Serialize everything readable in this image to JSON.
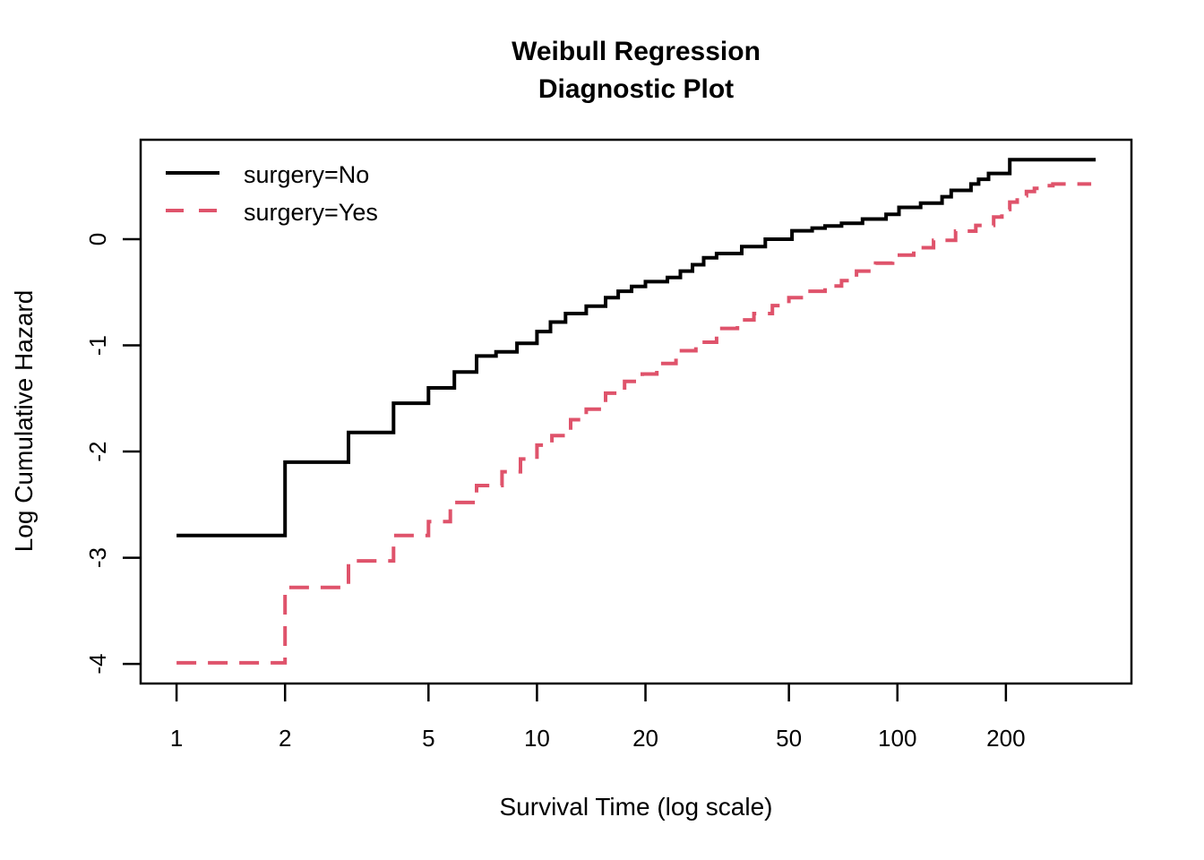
{
  "figure": {
    "background": "#FFFFFF",
    "foreground": "#000000"
  },
  "chart_data": {
    "type": "line",
    "subtype": "step-function-cumulative-hazard",
    "title": "Weibull Regression Diagnostic Plot",
    "title_line1": "Weibull Regression",
    "title_line2": "Diagnostic Plot",
    "xlabel": "Survival Time (log scale)",
    "ylabel": "Log Cumulative Hazard",
    "x_scale": "log",
    "y_scale": "linear",
    "grid": false,
    "legend_position": "top-left",
    "x_domain": [
      0.795,
      446
    ],
    "y_domain": [
      -4.185,
      0.937
    ],
    "x_tick_values": [
      1,
      2,
      5,
      10,
      20,
      50,
      100,
      200
    ],
    "x_tick_labels": [
      "1",
      "2",
      "5",
      "10",
      "20",
      "50",
      "100",
      "200"
    ],
    "y_tick_values": [
      0,
      -1,
      -2,
      -3,
      -4
    ],
    "y_tick_labels": [
      "0",
      "-1",
      "-2",
      "-3",
      "-4"
    ],
    "series": [
      {
        "name": "surgery=No",
        "color": "#000000",
        "line_style": "solid",
        "dash_array": "none",
        "line_width": 4,
        "step": "after",
        "x_end": 355,
        "points": [
          [
            1,
            -2.79
          ],
          [
            2,
            -2.1
          ],
          [
            3,
            -1.82
          ],
          [
            4,
            -1.545
          ],
          [
            5,
            -1.4
          ],
          [
            5.9,
            -1.25
          ],
          [
            6.8,
            -1.1
          ],
          [
            7.7,
            -1.06
          ],
          [
            8.8,
            -0.98
          ],
          [
            10,
            -0.87
          ],
          [
            10.9,
            -0.78
          ],
          [
            12,
            -0.7
          ],
          [
            13.7,
            -0.63
          ],
          [
            15.5,
            -0.55
          ],
          [
            16.8,
            -0.49
          ],
          [
            18.3,
            -0.445
          ],
          [
            20,
            -0.4
          ],
          [
            23,
            -0.36
          ],
          [
            25,
            -0.3
          ],
          [
            27,
            -0.24
          ],
          [
            29,
            -0.175
          ],
          [
            31.5,
            -0.135
          ],
          [
            37,
            -0.07
          ],
          [
            43,
            0.0
          ],
          [
            51,
            0.08
          ],
          [
            58,
            0.105
          ],
          [
            63,
            0.125
          ],
          [
            70,
            0.15
          ],
          [
            80,
            0.19
          ],
          [
            93,
            0.235
          ],
          [
            101,
            0.3
          ],
          [
            116,
            0.34
          ],
          [
            133,
            0.4
          ],
          [
            141,
            0.46
          ],
          [
            160,
            0.52
          ],
          [
            168,
            0.565
          ],
          [
            179,
            0.62
          ],
          [
            205,
            0.75
          ]
        ]
      },
      {
        "name": "surgery=Yes",
        "color": "#DF536B",
        "line_style": "dashed",
        "dash_array": "22 13",
        "line_width": 4,
        "step": "after",
        "x_end": 345,
        "points": [
          [
            1,
            -3.99
          ],
          [
            2,
            -3.28
          ],
          [
            3,
            -3.03
          ],
          [
            4,
            -2.79
          ],
          [
            5,
            -2.66
          ],
          [
            5.75,
            -2.48
          ],
          [
            6.8,
            -2.32
          ],
          [
            8,
            -2.19
          ],
          [
            9,
            -2.07
          ],
          [
            10,
            -1.94
          ],
          [
            11,
            -1.85
          ],
          [
            12.4,
            -1.7
          ],
          [
            13.7,
            -1.6
          ],
          [
            15.5,
            -1.45
          ],
          [
            17.5,
            -1.34
          ],
          [
            19.6,
            -1.27
          ],
          [
            21.5,
            -1.17
          ],
          [
            24.3,
            -1.05
          ],
          [
            27.6,
            -0.97
          ],
          [
            31.5,
            -0.84
          ],
          [
            36,
            -0.76
          ],
          [
            40,
            -0.7
          ],
          [
            45,
            -0.625
          ],
          [
            50,
            -0.55
          ],
          [
            56,
            -0.49
          ],
          [
            63,
            -0.44
          ],
          [
            70,
            -0.39
          ],
          [
            77,
            -0.3
          ],
          [
            87,
            -0.225
          ],
          [
            97,
            -0.15
          ],
          [
            111,
            -0.08
          ],
          [
            126,
            -0.01
          ],
          [
            145,
            0.076
          ],
          [
            165,
            0.13
          ],
          [
            185,
            0.21
          ],
          [
            195,
            0.28
          ],
          [
            205,
            0.35
          ],
          [
            215,
            0.41
          ],
          [
            228,
            0.45
          ],
          [
            240,
            0.48
          ],
          [
            255,
            0.505
          ],
          [
            270,
            0.52
          ]
        ]
      }
    ],
    "legend": {
      "items": [
        "surgery=No",
        "surgery=Yes"
      ]
    }
  }
}
